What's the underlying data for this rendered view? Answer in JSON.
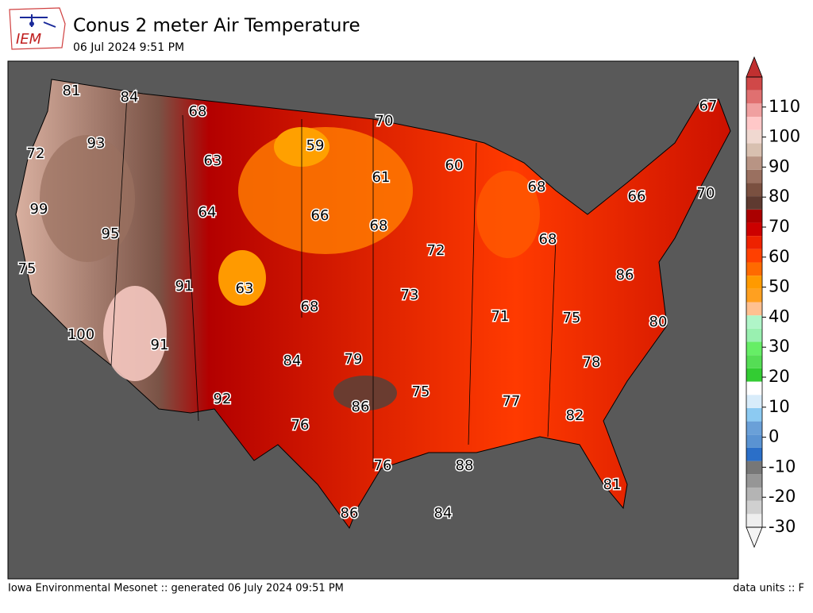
{
  "logo_text": "IEM",
  "title": "Conus 2 meter Air Temperature",
  "subtitle": "06 Jul 2024 9:51 PM",
  "footer_left": "Iowa Environmental Mesonet :: generated 06 July 2024 09:51 PM",
  "footer_right": "data units :: F",
  "station_values": [
    81,
    84,
    68,
    67,
    70,
    72,
    93,
    59,
    63,
    60,
    61,
    68,
    66,
    70,
    99,
    64,
    66,
    68,
    95,
    68,
    72,
    75,
    91,
    63,
    86,
    73,
    68,
    71,
    75,
    80,
    100,
    91,
    84,
    79,
    78,
    86,
    75,
    77,
    92,
    82,
    76,
    76,
    88,
    81,
    86,
    84
  ],
  "colorbar": {
    "lim": [
      -30,
      120
    ],
    "ticks": [
      -30,
      -20,
      -10,
      0,
      10,
      20,
      30,
      40,
      50,
      60,
      70,
      80,
      90,
      100,
      110
    ],
    "colors": [
      "#eeeeee",
      "#d0d0d0",
      "#b4b4b4",
      "#969696",
      "#777777",
      "#2b6fc8",
      "#5a93d2",
      "#6aa0d8",
      "#8ccaf2",
      "#d8ecfa",
      "#ffffff",
      "#33cc33",
      "#55dd55",
      "#66ee66",
      "#99f0b0",
      "#b0f5c8",
      "#ffc090",
      "#ffa020",
      "#ff9a00",
      "#ff6a00",
      "#ff4000",
      "#ee2200",
      "#cc0000",
      "#aa0000",
      "#5e3a30",
      "#7a5040",
      "#9a7060",
      "#b89484",
      "#d8c0b0",
      "#f0d8d0",
      "#ffc8c8",
      "#f0a0a0",
      "#e07070",
      "#d04848"
    ]
  }
}
